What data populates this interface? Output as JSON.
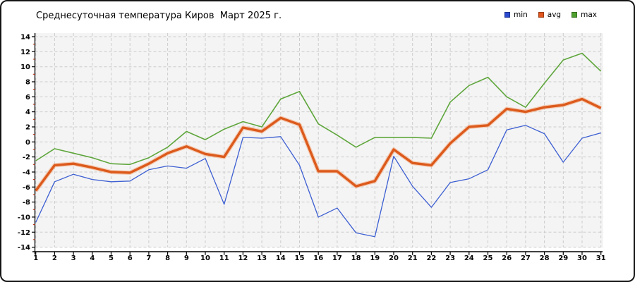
{
  "chart_data": {
    "type": "line",
    "title": "Среднесуточная температура Киров  Март 2025 г.",
    "x_label_unit": "day of month (March 2025)",
    "x": [
      1,
      2,
      3,
      4,
      5,
      6,
      7,
      8,
      9,
      10,
      11,
      12,
      13,
      14,
      15,
      16,
      17,
      18,
      19,
      20,
      21,
      22,
      23,
      24,
      25,
      26,
      27,
      28,
      29,
      30,
      31
    ],
    "series": [
      {
        "name": "min",
        "color": "#3d5fd2",
        "line_width": 1.3,
        "values": [
          -10.7,
          -5.3,
          -4.3,
          -5.0,
          -5.3,
          -5.2,
          -3.7,
          -3.2,
          -3.5,
          -2.2,
          -8.3,
          0.6,
          0.5,
          0.7,
          -3.1,
          -10.0,
          -8.8,
          -12.1,
          -12.6,
          -1.9,
          -5.9,
          -8.7,
          -5.4,
          -4.9,
          -3.7,
          1.6,
          2.2,
          1.1,
          -2.7,
          0.5,
          1.2
        ]
      },
      {
        "name": "avg",
        "color": "#dc5a1c",
        "halo": "#f3b38c",
        "line_width": 3.4,
        "values": [
          -6.5,
          -3.1,
          -2.9,
          -3.4,
          -4.0,
          -4.1,
          -2.9,
          -1.5,
          -0.6,
          -1.6,
          -2.0,
          1.9,
          1.4,
          3.2,
          2.3,
          -3.9,
          -3.9,
          -5.9,
          -5.2,
          -1.0,
          -2.8,
          -3.1,
          -0.2,
          2.0,
          2.2,
          4.4,
          4.0,
          4.6,
          4.9,
          5.7,
          4.5
        ]
      },
      {
        "name": "max",
        "color": "#5fa63c",
        "line_width": 1.6,
        "values": [
          -2.5,
          -0.9,
          -1.5,
          -2.1,
          -2.9,
          -3.0,
          -2.1,
          -0.7,
          1.4,
          0.3,
          1.7,
          2.7,
          2.0,
          5.7,
          6.7,
          2.4,
          0.9,
          -0.7,
          0.6,
          0.6,
          0.6,
          0.5,
          5.3,
          7.5,
          8.6,
          6.0,
          4.6,
          7.8,
          10.9,
          11.8,
          9.4
        ]
      }
    ],
    "ylim": [
      -14,
      14
    ],
    "ytick_step": 2,
    "ytick_minor_step": 1,
    "grid": true,
    "grid_color": "#cccccc",
    "plot_bg": "#f4f4f4",
    "axis_color": "#000000",
    "minor_tick_color": "#c23b22",
    "legend_position": "top-right"
  },
  "legend": [
    {
      "label": "min",
      "color": "#2a4ad0"
    },
    {
      "label": "avg",
      "color": "#e0561e"
    },
    {
      "label": "max",
      "color": "#4ea02e"
    }
  ]
}
